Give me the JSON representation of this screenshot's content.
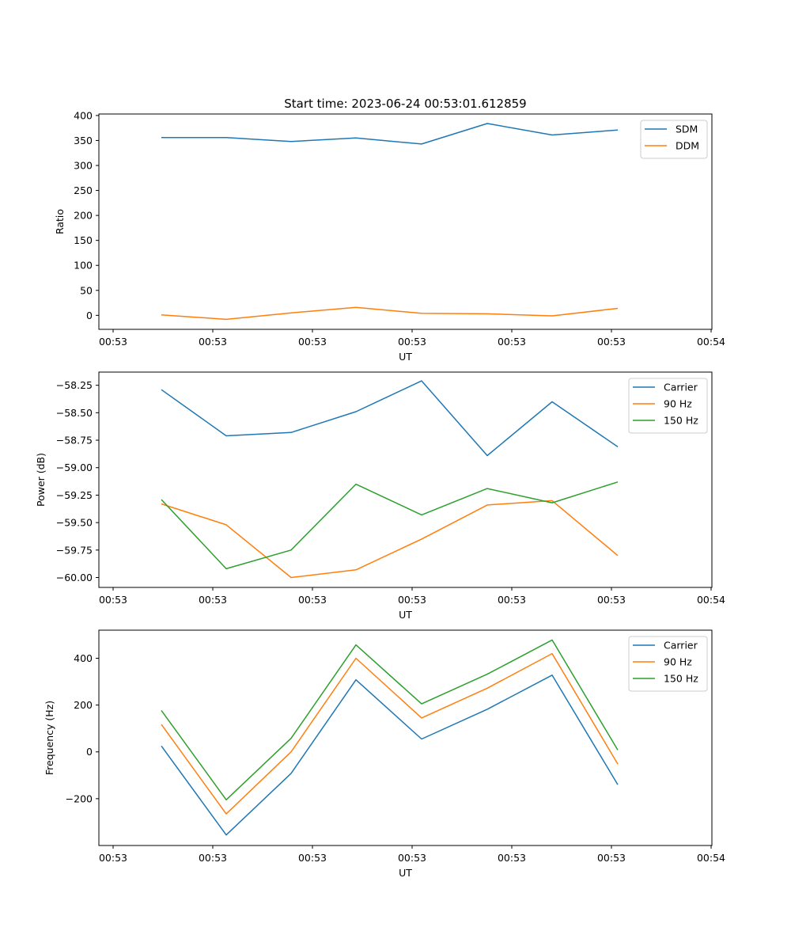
{
  "figure": {
    "title": "Start time: 2023-06-24 00:53:01.612859"
  },
  "chart_data": [
    {
      "type": "line",
      "title": "Start time: 2023-06-24 00:53:01.612859",
      "xlabel": "UT",
      "ylabel": "Ratio",
      "x_tick_labels": [
        "00:53",
        "00:53",
        "00:53",
        "00:53",
        "00:53",
        "00:53",
        "00:54"
      ],
      "y_ticks": [
        0,
        50,
        100,
        150,
        200,
        250,
        300,
        350,
        400
      ],
      "y_tick_labels": [
        "0",
        "50",
        "100",
        "150",
        "200",
        "250",
        "300",
        "350",
        "400"
      ],
      "ylim": [
        -28,
        403
      ],
      "legend": "top-right",
      "grid": false,
      "x": [
        1,
        2,
        3,
        4,
        5,
        6,
        7,
        8
      ],
      "series": [
        {
          "name": "SDM",
          "color": "#1f77b4",
          "values": [
            356,
            356,
            348,
            355,
            343,
            384,
            361,
            371
          ]
        },
        {
          "name": "DDM",
          "color": "#ff7f0e",
          "values": [
            1,
            -8,
            5,
            16,
            4,
            3,
            -1,
            14
          ]
        }
      ]
    },
    {
      "type": "line",
      "title": "",
      "xlabel": "UT",
      "ylabel": "Power (dB)",
      "x_tick_labels": [
        "00:53",
        "00:53",
        "00:53",
        "00:53",
        "00:53",
        "00:53",
        "00:54"
      ],
      "y_ticks": [
        -60.0,
        -59.75,
        -59.5,
        -59.25,
        -59.0,
        -58.75,
        -58.5,
        -58.25
      ],
      "y_tick_labels": [
        "−60.00",
        "−59.75",
        "−59.50",
        "−59.25",
        "−59.00",
        "−58.75",
        "−58.50",
        "−58.25"
      ],
      "ylim": [
        -60.09,
        -58.13
      ],
      "legend": "top-right",
      "grid": false,
      "x": [
        1,
        2,
        3,
        4,
        5,
        6,
        7,
        8
      ],
      "series": [
        {
          "name": "Carrier",
          "color": "#1f77b4",
          "values": [
            -58.29,
            -58.71,
            -58.68,
            -58.49,
            -58.21,
            -58.89,
            -58.4,
            -58.81
          ]
        },
        {
          "name": "90 Hz",
          "color": "#ff7f0e",
          "values": [
            -59.33,
            -59.52,
            -60.0,
            -59.93,
            -59.65,
            -59.34,
            -59.3,
            -59.8
          ]
        },
        {
          "name": "150 Hz",
          "color": "#2ca02c",
          "values": [
            -59.29,
            -59.92,
            -59.75,
            -59.15,
            -59.43,
            -59.19,
            -59.32,
            -59.13
          ]
        }
      ]
    },
    {
      "type": "line",
      "title": "",
      "xlabel": "UT",
      "ylabel": "Frequency (Hz)",
      "x_tick_labels": [
        "00:53",
        "00:53",
        "00:53",
        "00:53",
        "00:53",
        "00:53",
        "00:54"
      ],
      "y_ticks": [
        -200,
        0,
        200,
        400
      ],
      "y_tick_labels": [
        "−200",
        "0",
        "200",
        "400"
      ],
      "ylim": [
        -400,
        520
      ],
      "legend": "top-right",
      "grid": false,
      "x": [
        1,
        2,
        3,
        4,
        5,
        6,
        7,
        8
      ],
      "series": [
        {
          "name": "Carrier",
          "color": "#1f77b4",
          "values": [
            25,
            -355,
            -92,
            308,
            55,
            182,
            328,
            -140
          ]
        },
        {
          "name": "90 Hz",
          "color": "#ff7f0e",
          "values": [
            117,
            -265,
            0,
            400,
            145,
            272,
            420,
            -52
          ]
        },
        {
          "name": "150 Hz",
          "color": "#2ca02c",
          "values": [
            177,
            -205,
            58,
            457,
            205,
            332,
            478,
            8
          ]
        }
      ]
    }
  ]
}
